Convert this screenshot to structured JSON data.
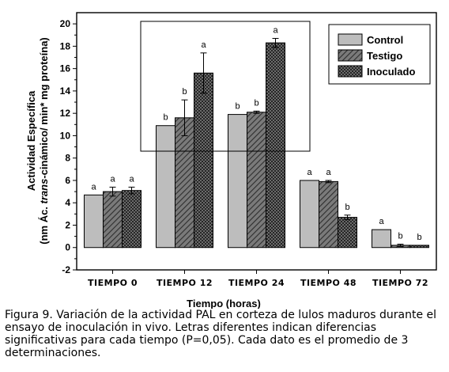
{
  "chart_data": {
    "type": "bar",
    "categories": [
      "TIEMPO 0",
      "TIEMPO 12",
      "TIEMPO 24",
      "TIEMPO 48",
      "TIEMPO 72"
    ],
    "series": [
      {
        "name": "Control",
        "values": [
          4.7,
          10.9,
          11.9,
          6.0,
          1.6
        ],
        "errors": [
          0.0,
          0.0,
          0.0,
          0.0,
          0.0
        ],
        "labels": [
          "a",
          "b",
          "b",
          "a",
          "a"
        ],
        "color": "#bdbdbd",
        "pattern": "solid"
      },
      {
        "name": "Testigo",
        "values": [
          5.0,
          11.6,
          12.1,
          5.9,
          0.2
        ],
        "errors": [
          0.4,
          1.6,
          0.1,
          0.1,
          0.1
        ],
        "labels": [
          "a",
          "b",
          "b",
          "a",
          "b"
        ],
        "color": "#666666",
        "pattern": "diagonal"
      },
      {
        "name": "Inoculado",
        "values": [
          5.1,
          15.6,
          18.3,
          2.7,
          0.2
        ],
        "errors": [
          0.3,
          1.8,
          0.4,
          0.2,
          0.0
        ],
        "labels": [
          "a",
          "a",
          "a",
          "b",
          "b"
        ],
        "color": "#555555",
        "pattern": "crosshatch"
      }
    ],
    "xlabel": "Tiempo (horas)",
    "ylabel_parts": [
      "(nm Ác. ",
      "trans",
      "-cinámico/ min* mg proteína)"
    ],
    "ylabel_line1": "Actividad Específica",
    "ylim": [
      -2,
      21
    ],
    "yticks": [
      -2,
      0,
      2,
      4,
      6,
      8,
      10,
      12,
      14,
      16,
      18,
      20
    ],
    "legend_placement": "top-right",
    "grid": false
  },
  "caption": "Figura 9. Variación de la actividad PAL en corteza de lulos maduros durante el ensayo de inoculación in vivo. Letras diferentes indican diferencias significativas para cada tiempo (P=0,05). Cada dato es el promedio de 3 determinaciones."
}
